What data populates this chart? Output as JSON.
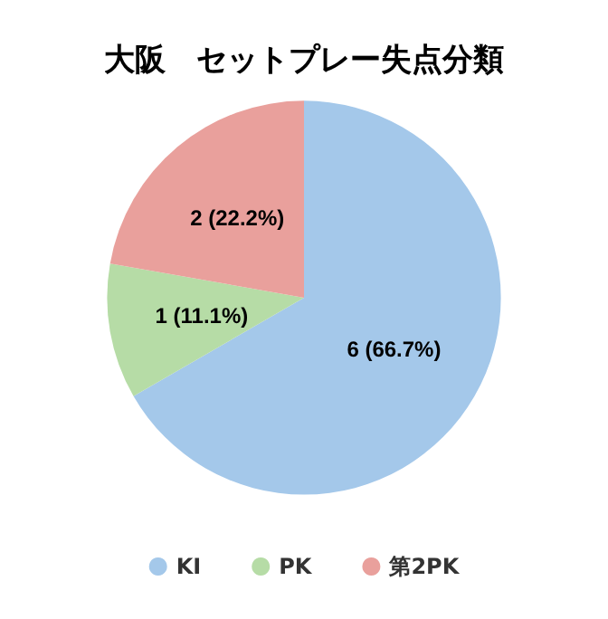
{
  "chart_data": {
    "type": "pie",
    "title": "大阪　セットプレー失点分類",
    "categories": [
      "KI",
      "PK",
      "第2PK"
    ],
    "values": [
      6,
      1,
      2
    ],
    "colors": [
      "#a4c8ea",
      "#b6dca6",
      "#e9a09c"
    ],
    "value_labels": [
      "6 (66.7%)",
      "1 (11.1%)",
      "2 (22.2%)"
    ],
    "legend": "bottom"
  }
}
